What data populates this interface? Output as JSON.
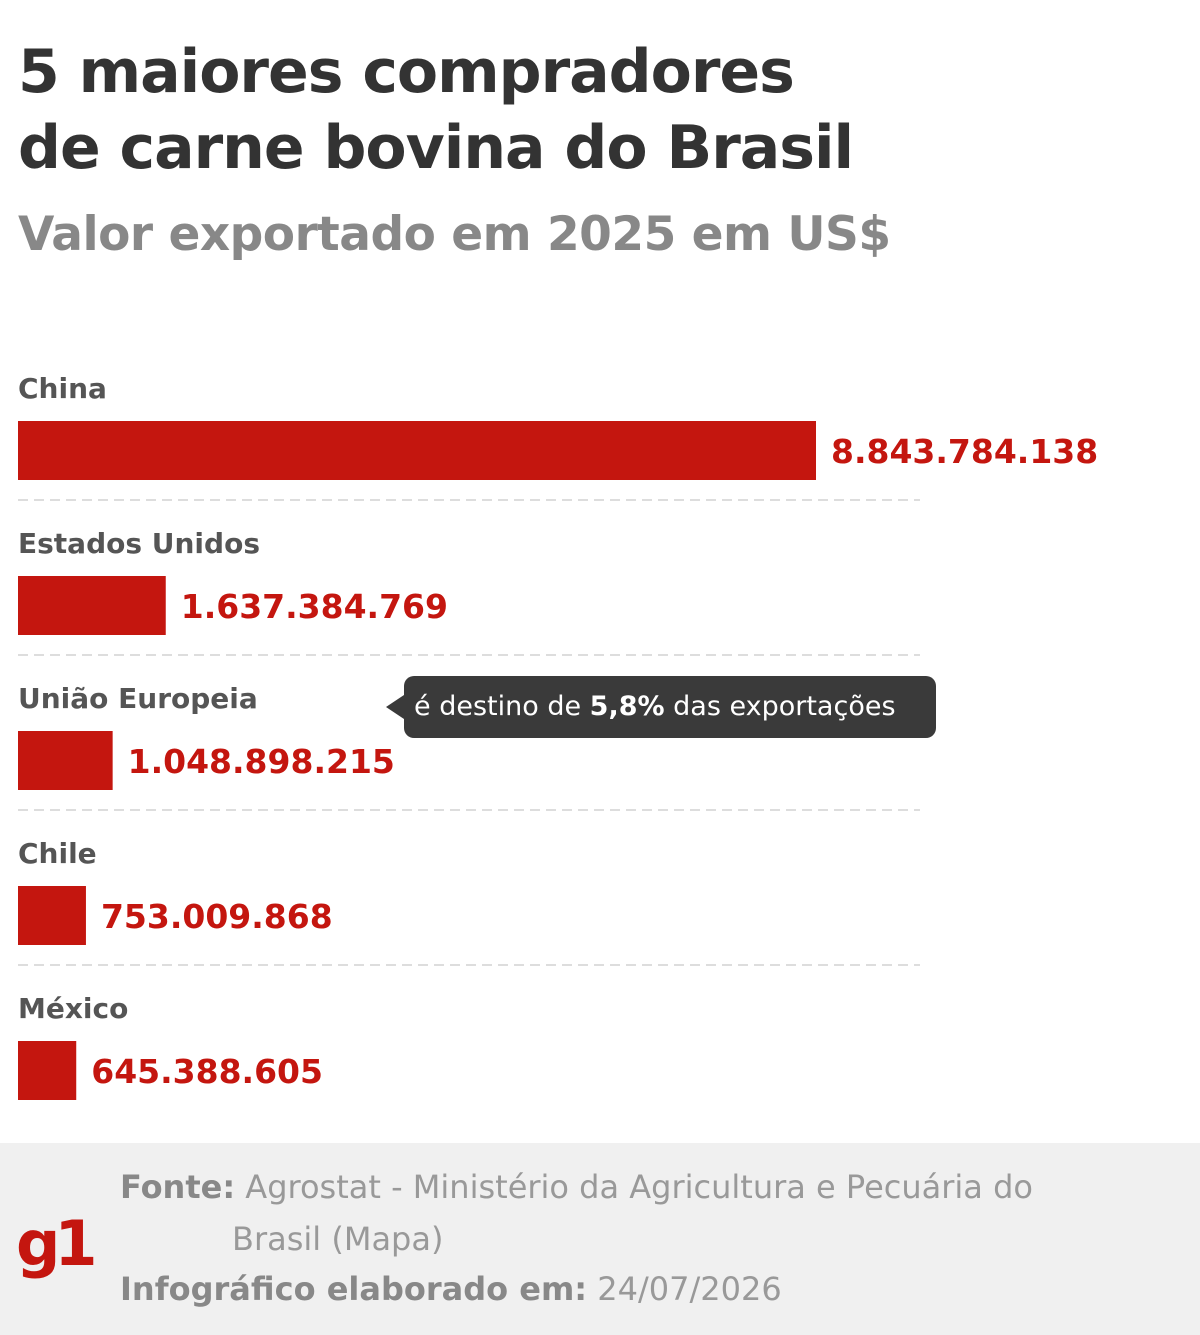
{
  "title_line1": "5 maiores compradores",
  "title_line2": "de carne bovina do Brasil",
  "subtitle": "Valor exportado em 2025 em US$",
  "colors": {
    "bar": "#c4160f",
    "label": "#c4160f",
    "category": "#555555",
    "divider": "#dddddd"
  },
  "chart_data": {
    "type": "bar",
    "orientation": "horizontal",
    "categories": [
      "China",
      "Estados Unidos",
      "União Europeia",
      "Chile",
      "México"
    ],
    "values": [
      8843784138,
      1637384769,
      1048898215,
      753009868,
      645388605
    ],
    "value_labels": [
      "8.843.784.138",
      "1.637.384.769",
      "1.048.898.215",
      "753.009.868",
      "645.388.605"
    ],
    "annotation": {
      "category": "União Europeia",
      "text_before": "é destino de ",
      "text_bold": "5,8%",
      "text_after": " das exportações"
    }
  },
  "footer": {
    "logo_text": "g1",
    "source_label": "Fonte:",
    "source_line1": "Agrostat - Ministério da Agricultura e Pecuária do",
    "source_line2": "Brasil (Mapa)",
    "date_label": "Infográfico elaborado em:",
    "date_value": "24/07/2026"
  }
}
